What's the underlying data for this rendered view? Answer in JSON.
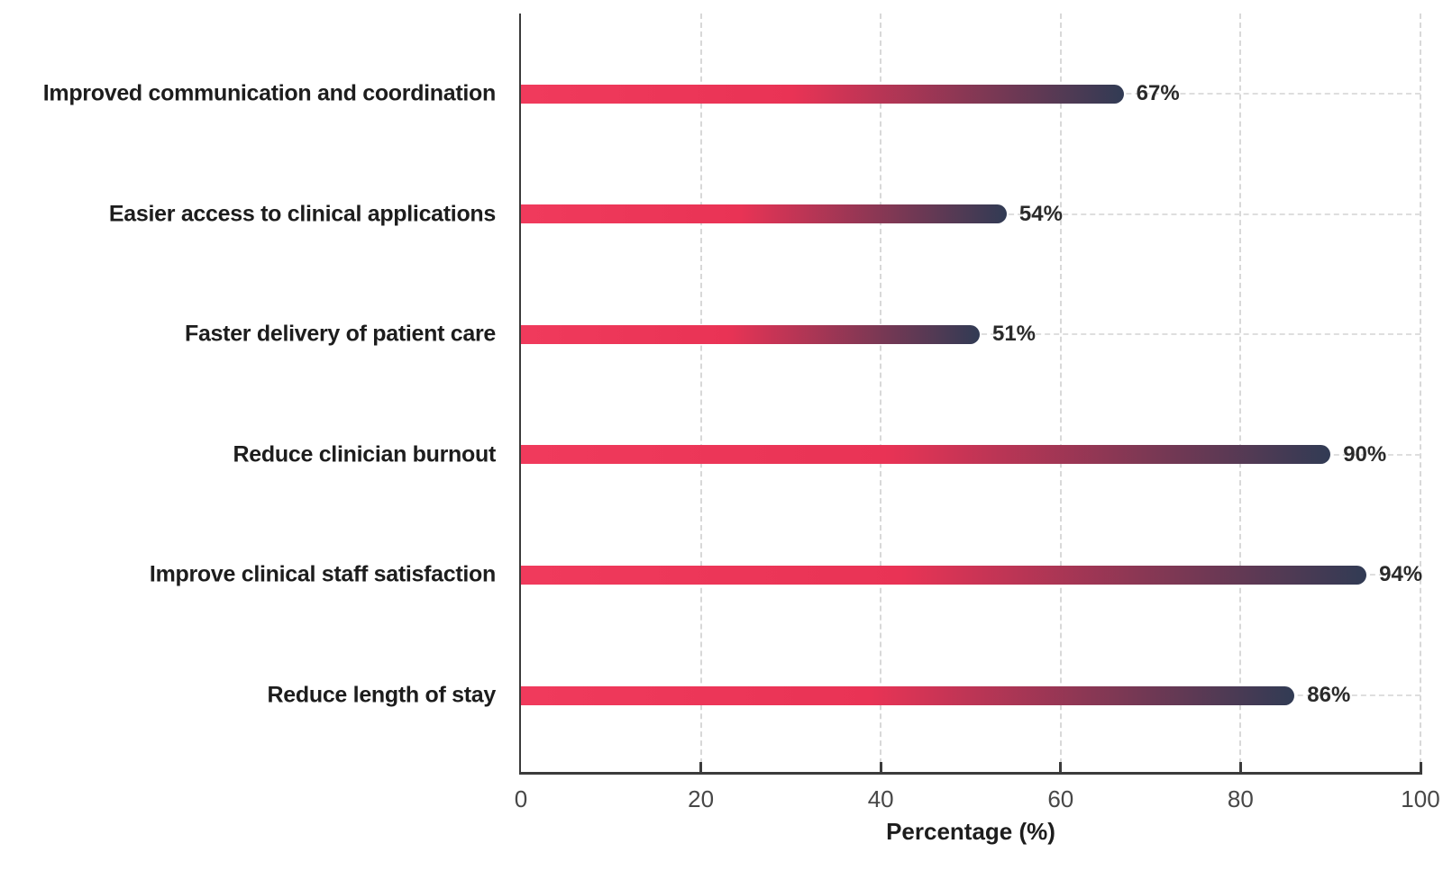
{
  "chart_data": {
    "type": "bar",
    "orientation": "horizontal",
    "title": "",
    "categories": [
      "Improved communication and coordination",
      "Easier access to clinical applications",
      "Faster delivery of patient care",
      "Reduce clinician burnout",
      "Improve clinical staff satisfaction",
      "Reduce length of stay"
    ],
    "values": [
      67,
      54,
      51,
      90,
      94,
      86
    ],
    "value_labels": [
      "67%",
      "54%",
      "51%",
      "90%",
      "94%",
      "86%"
    ],
    "xlabel": "Percentage (%)",
    "ylabel": "",
    "xticks": [
      0,
      20,
      40,
      60,
      80,
      100
    ],
    "xtick_labels": [
      "0",
      "20",
      "40",
      "60",
      "80",
      "100"
    ],
    "xlim": [
      0,
      100
    ],
    "grid": "dashed vertical gridlines at x ticks and dashed horizontal guide line at each bar row",
    "legend": "none",
    "colors": {
      "bar_gradient_start": "#f03a5c",
      "bar_gradient_mid": "#e93355",
      "bar_gradient_end": "#313b54",
      "axis": "#3b3b3b",
      "gridline": "#d8d8d8",
      "row_guide_line": "#dedede",
      "category_label": "#1d1d1d",
      "value_label": "#2a2a2a",
      "tick_label": "#474747",
      "background": "#ffffff"
    }
  }
}
